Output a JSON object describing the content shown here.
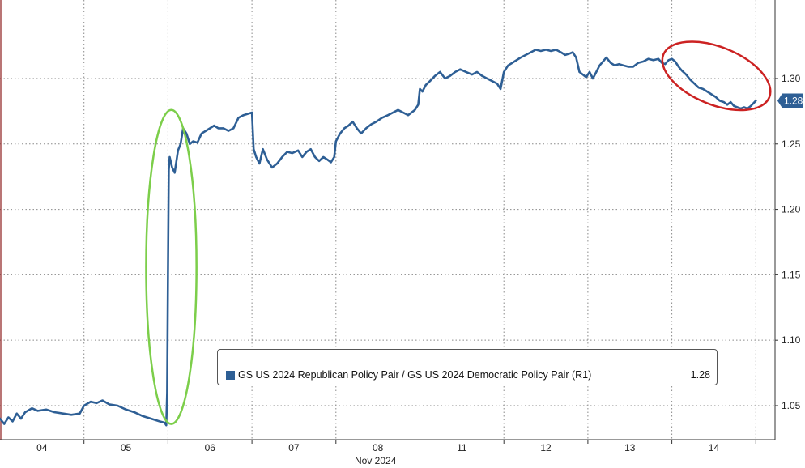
{
  "chart_data": {
    "type": "line",
    "xlabel": "Nov 2024",
    "x_tick_labels": [
      "04",
      "05",
      "06",
      "07",
      "08",
      "11",
      "12",
      "13",
      "14"
    ],
    "y_ticks": [
      1.05,
      1.1,
      1.15,
      1.2,
      1.25,
      1.3
    ],
    "y_tick_labels": [
      "1.05",
      "1.10",
      "1.15",
      "1.20",
      "1.25",
      "1.30"
    ],
    "ylim": [
      1.024,
      1.36
    ],
    "y_axis_side": "right",
    "grid": true,
    "last_value_label": "1.28",
    "series": [
      {
        "name": "GS US 2024 Republican Policy Pair / GS US 2024 Democratic Policy Pair (R1)",
        "color": "#2e5f95",
        "last_value": "1.28",
        "points": [
          [
            0.0,
            1.04
          ],
          [
            0.05,
            1.036
          ],
          [
            0.1,
            1.041
          ],
          [
            0.15,
            1.038
          ],
          [
            0.2,
            1.044
          ],
          [
            0.25,
            1.04
          ],
          [
            0.3,
            1.045
          ],
          [
            0.38,
            1.048
          ],
          [
            0.45,
            1.046
          ],
          [
            0.55,
            1.047
          ],
          [
            0.65,
            1.045
          ],
          [
            0.75,
            1.044
          ],
          [
            0.85,
            1.043
          ],
          [
            0.95,
            1.044
          ],
          [
            1.0,
            1.05
          ],
          [
            1.08,
            1.053
          ],
          [
            1.15,
            1.052
          ],
          [
            1.22,
            1.054
          ],
          [
            1.3,
            1.051
          ],
          [
            1.4,
            1.05
          ],
          [
            1.5,
            1.047
          ],
          [
            1.6,
            1.045
          ],
          [
            1.7,
            1.042
          ],
          [
            1.8,
            1.04
          ],
          [
            1.9,
            1.038
          ],
          [
            1.96,
            1.037
          ],
          [
            1.98,
            1.035
          ],
          [
            1.99,
            1.06
          ],
          [
            2.0,
            1.15
          ],
          [
            2.01,
            1.23
          ],
          [
            2.02,
            1.24
          ],
          [
            2.05,
            1.232
          ],
          [
            2.08,
            1.228
          ],
          [
            2.12,
            1.245
          ],
          [
            2.15,
            1.25
          ],
          [
            2.18,
            1.262
          ],
          [
            2.22,
            1.258
          ],
          [
            2.26,
            1.25
          ],
          [
            2.3,
            1.252
          ],
          [
            2.35,
            1.251
          ],
          [
            2.4,
            1.258
          ],
          [
            2.45,
            1.26
          ],
          [
            2.5,
            1.262
          ],
          [
            2.55,
            1.264
          ],
          [
            2.6,
            1.262
          ],
          [
            2.66,
            1.262
          ],
          [
            2.72,
            1.26
          ],
          [
            2.78,
            1.262
          ],
          [
            2.84,
            1.27
          ],
          [
            2.9,
            1.272
          ],
          [
            2.95,
            1.273
          ],
          [
            3.0,
            1.274
          ],
          [
            3.02,
            1.246
          ],
          [
            3.05,
            1.24
          ],
          [
            3.09,
            1.235
          ],
          [
            3.13,
            1.246
          ],
          [
            3.18,
            1.238
          ],
          [
            3.24,
            1.232
          ],
          [
            3.3,
            1.235
          ],
          [
            3.36,
            1.24
          ],
          [
            3.42,
            1.244
          ],
          [
            3.48,
            1.243
          ],
          [
            3.55,
            1.245
          ],
          [
            3.6,
            1.24
          ],
          [
            3.65,
            1.244
          ],
          [
            3.7,
            1.246
          ],
          [
            3.75,
            1.24
          ],
          [
            3.8,
            1.237
          ],
          [
            3.85,
            1.24
          ],
          [
            3.9,
            1.238
          ],
          [
            3.94,
            1.236
          ],
          [
            3.98,
            1.24
          ],
          [
            4.0,
            1.252
          ],
          [
            4.05,
            1.258
          ],
          [
            4.1,
            1.262
          ],
          [
            4.15,
            1.264
          ],
          [
            4.2,
            1.267
          ],
          [
            4.25,
            1.262
          ],
          [
            4.3,
            1.258
          ],
          [
            4.36,
            1.262
          ],
          [
            4.42,
            1.265
          ],
          [
            4.48,
            1.267
          ],
          [
            4.55,
            1.27
          ],
          [
            4.62,
            1.272
          ],
          [
            4.68,
            1.274
          ],
          [
            4.74,
            1.276
          ],
          [
            4.8,
            1.274
          ],
          [
            4.86,
            1.272
          ],
          [
            4.9,
            1.274
          ],
          [
            4.94,
            1.276
          ],
          [
            4.98,
            1.28
          ],
          [
            5.0,
            1.292
          ],
          [
            5.03,
            1.29
          ],
          [
            5.07,
            1.295
          ],
          [
            5.12,
            1.298
          ],
          [
            5.18,
            1.302
          ],
          [
            5.24,
            1.305
          ],
          [
            5.3,
            1.3
          ],
          [
            5.36,
            1.302
          ],
          [
            5.42,
            1.305
          ],
          [
            5.48,
            1.307
          ],
          [
            5.55,
            1.305
          ],
          [
            5.62,
            1.303
          ],
          [
            5.68,
            1.305
          ],
          [
            5.74,
            1.302
          ],
          [
            5.8,
            1.3
          ],
          [
            5.86,
            1.298
          ],
          [
            5.92,
            1.296
          ],
          [
            5.96,
            1.292
          ],
          [
            6.0,
            1.305
          ],
          [
            6.05,
            1.31
          ],
          [
            6.1,
            1.312
          ],
          [
            6.15,
            1.314
          ],
          [
            6.2,
            1.316
          ],
          [
            6.26,
            1.318
          ],
          [
            6.32,
            1.32
          ],
          [
            6.38,
            1.322
          ],
          [
            6.44,
            1.321
          ],
          [
            6.5,
            1.322
          ],
          [
            6.56,
            1.321
          ],
          [
            6.62,
            1.322
          ],
          [
            6.68,
            1.32
          ],
          [
            6.73,
            1.318
          ],
          [
            6.78,
            1.319
          ],
          [
            6.82,
            1.32
          ],
          [
            6.86,
            1.316
          ],
          [
            6.9,
            1.305
          ],
          [
            6.94,
            1.303
          ],
          [
            6.98,
            1.301
          ],
          [
            7.02,
            1.305
          ],
          [
            7.06,
            1.3
          ],
          [
            7.1,
            1.305
          ],
          [
            7.14,
            1.31
          ],
          [
            7.18,
            1.313
          ],
          [
            7.22,
            1.316
          ],
          [
            7.27,
            1.312
          ],
          [
            7.32,
            1.31
          ],
          [
            7.37,
            1.311
          ],
          [
            7.42,
            1.31
          ],
          [
            7.48,
            1.309
          ],
          [
            7.54,
            1.309
          ],
          [
            7.6,
            1.312
          ],
          [
            7.66,
            1.313
          ],
          [
            7.72,
            1.315
          ],
          [
            7.78,
            1.314
          ],
          [
            7.84,
            1.315
          ],
          [
            7.88,
            1.312
          ],
          [
            7.92,
            1.311
          ],
          [
            7.96,
            1.314
          ],
          [
            8.0,
            1.315
          ],
          [
            8.04,
            1.313
          ],
          [
            8.08,
            1.309
          ],
          [
            8.12,
            1.306
          ],
          [
            8.17,
            1.303
          ],
          [
            8.22,
            1.299
          ],
          [
            8.27,
            1.296
          ],
          [
            8.32,
            1.293
          ],
          [
            8.37,
            1.292
          ],
          [
            8.42,
            1.29
          ],
          [
            8.47,
            1.288
          ],
          [
            8.52,
            1.286
          ],
          [
            8.57,
            1.283
          ],
          [
            8.62,
            1.282
          ],
          [
            8.66,
            1.28
          ],
          [
            8.7,
            1.282
          ],
          [
            8.74,
            1.279
          ],
          [
            8.78,
            1.278
          ],
          [
            8.82,
            1.277
          ],
          [
            8.86,
            1.278
          ],
          [
            8.9,
            1.277
          ],
          [
            8.94,
            1.279
          ],
          [
            8.97,
            1.281
          ],
          [
            9.0,
            1.283
          ]
        ]
      }
    ],
    "annotations": [
      {
        "shape": "ellipse",
        "color": "#7cce4a",
        "x_center": 2.04,
        "y_center": 1.156,
        "x_halfwidth": 0.3,
        "y_halfwidth": 0.12
      },
      {
        "shape": "ellipse",
        "color": "#cc2222",
        "x_center": 8.53,
        "y_center": 1.302,
        "x_halfwidth": 0.68,
        "y_halfwidth": 0.022
      }
    ]
  },
  "legend": {
    "label": "GS US 2024 Republican Policy Pair / GS US 2024 Democratic Policy Pair (R1)",
    "value": "1.28",
    "color": "#2e5f95"
  }
}
